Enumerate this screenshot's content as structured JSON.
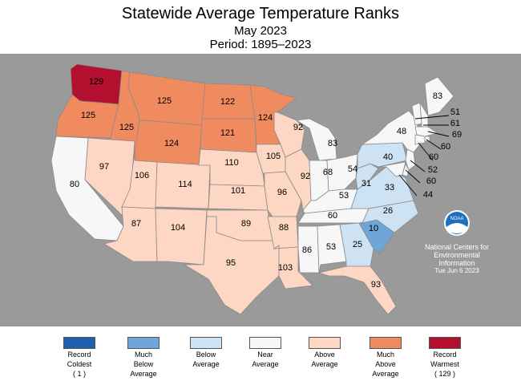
{
  "title": "Statewide Average Temperature Ranks",
  "subtitle": "May 2023",
  "period": "Period: 1895–2023",
  "credit": {
    "org1": "National Centers for",
    "org2": "Environmental",
    "org3": "Information",
    "date": "Tue Jun  6 2023",
    "logo": "NOAA"
  },
  "colors": {
    "record_coldest": "#1f5fae",
    "much_below": "#6ea7d7",
    "below": "#cde2f2",
    "near": "#f7f7f7",
    "above": "#fdd7c3",
    "much_above": "#f08a5f",
    "record_warmest": "#b2102e",
    "background": "#9a9a9a"
  },
  "legend": [
    {
      "l1": "Record",
      "l2": "Coldest",
      "l3": "( 1 )",
      "color": "#1f5fae"
    },
    {
      "l1": "Much",
      "l2": "Below",
      "l3": "Average",
      "color": "#6ea7d7"
    },
    {
      "l1": "Below",
      "l2": "Average",
      "l3": "",
      "color": "#cde2f2"
    },
    {
      "l1": "Near",
      "l2": "Average",
      "l3": "",
      "color": "#f7f7f7"
    },
    {
      "l1": "Above",
      "l2": "Average",
      "l3": "",
      "color": "#fdd7c3"
    },
    {
      "l1": "Much",
      "l2": "Above",
      "l3": "Average",
      "color": "#f08a5f"
    },
    {
      "l1": "Record",
      "l2": "Warmest",
      "l3": "( 129 )",
      "color": "#b2102e"
    }
  ],
  "ranks": {
    "WA": "129",
    "OR": "125",
    "ID": "125",
    "MT": "125",
    "WY": "124",
    "ND": "122",
    "SD": "121",
    "MN": "124",
    "CA": "80",
    "NV": "97",
    "UT": "106",
    "AZ": "87",
    "CO": "114",
    "NM": "104",
    "NE": "110",
    "KS": "101",
    "OK": "89",
    "TX": "95",
    "IA": "105",
    "MO": "96",
    "AR": "88",
    "LA": "103",
    "WI": "92",
    "IL": "92",
    "MI": "83",
    "IN": "68",
    "OH": "54",
    "KY": "53",
    "TN": "60",
    "MS": "86",
    "AL": "53",
    "GA": "25",
    "FL": "93",
    "SC": "10",
    "NC": "26",
    "VA": "33",
    "WV": "31",
    "PA": "40",
    "NY": "48",
    "ME": "83",
    "VT": "51",
    "NH": "61",
    "MA": "69",
    "RI": "60",
    "CT": "60",
    "NJ": "52",
    "DE": "60",
    "MD": "44"
  }
}
